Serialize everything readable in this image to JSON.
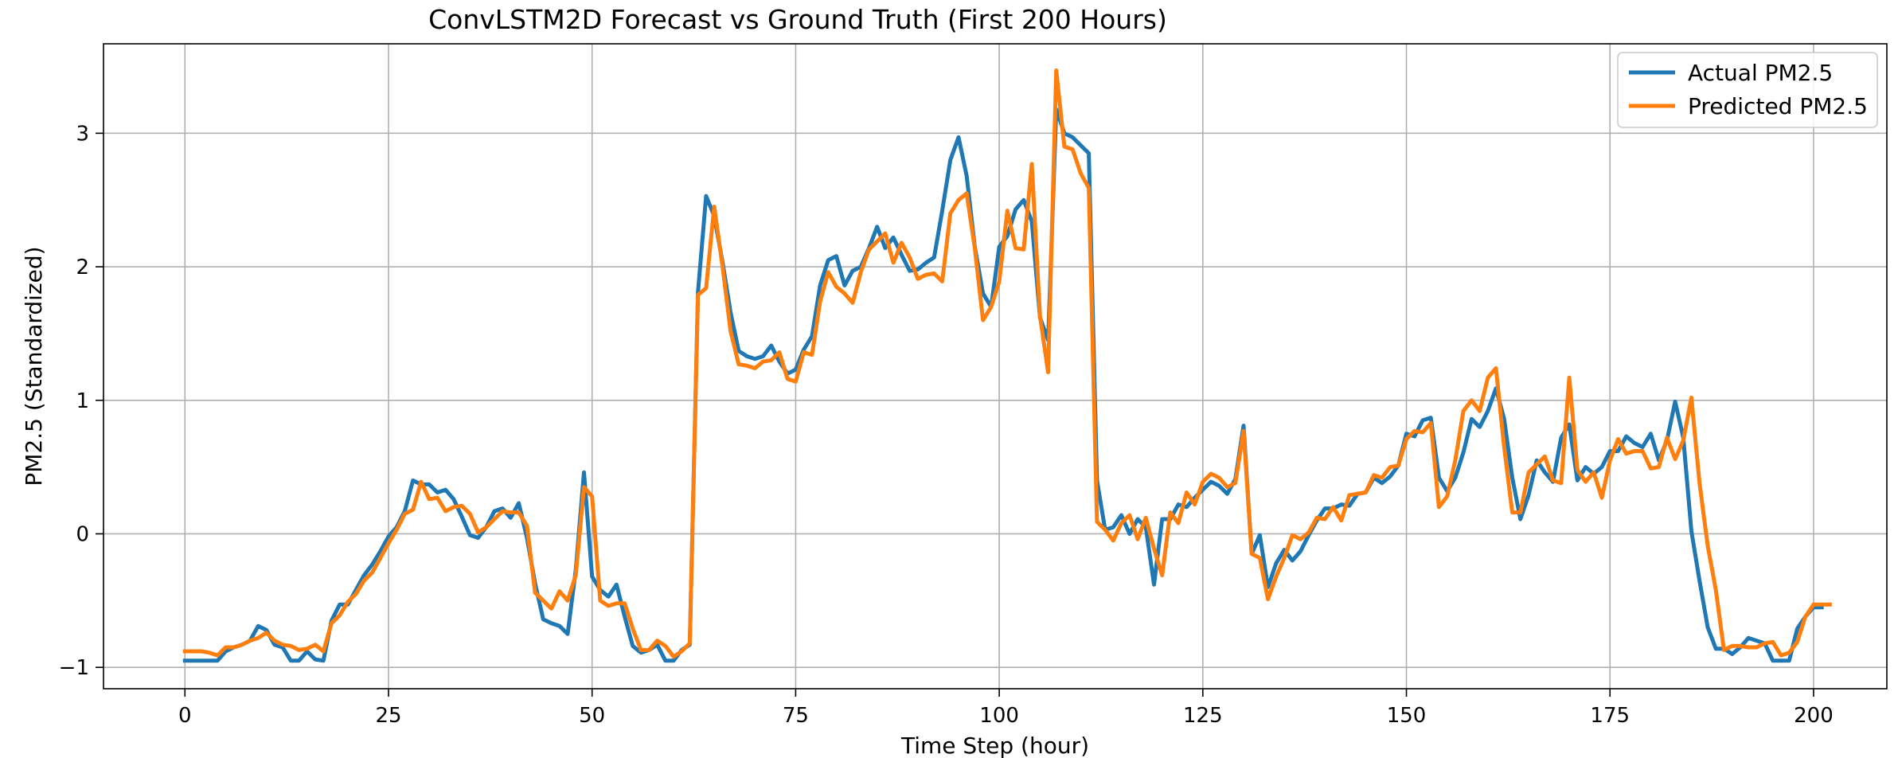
{
  "chart_data": {
    "type": "line",
    "title": "ConvLSTM2D Forecast vs Ground Truth (First 200 Hours)",
    "xlabel": "Time Step (hour)",
    "ylabel": "PM2.5 (Standardized)",
    "xlim": [
      -10,
      209
    ],
    "ylim": [
      -1.16,
      3.67
    ],
    "xticks": [
      0,
      25,
      50,
      75,
      100,
      125,
      150,
      175,
      200
    ],
    "yticks": [
      -1,
      0,
      1,
      2,
      3
    ],
    "ytick_labels": [
      "−1",
      "0",
      "1",
      "2",
      "3"
    ],
    "grid": true,
    "legend_position": "top-right",
    "series": [
      {
        "name": "Actual PM2.5",
        "color": "#1f77b4",
        "values": [
          -0.95,
          -0.95,
          -0.95,
          -0.95,
          -0.95,
          -0.88,
          -0.85,
          -0.83,
          -0.8,
          -0.69,
          -0.72,
          -0.83,
          -0.85,
          -0.95,
          -0.95,
          -0.88,
          -0.94,
          -0.95,
          -0.65,
          -0.53,
          -0.53,
          -0.42,
          -0.31,
          -0.23,
          -0.13,
          -0.02,
          0.05,
          0.17,
          0.4,
          0.37,
          0.37,
          0.31,
          0.33,
          0.26,
          0.13,
          -0.01,
          -0.03,
          0.05,
          0.17,
          0.19,
          0.12,
          0.23,
          -0.03,
          -0.37,
          -0.64,
          -0.67,
          -0.69,
          -0.75,
          -0.27,
          0.46,
          -0.32,
          -0.42,
          -0.47,
          -0.38,
          -0.62,
          -0.84,
          -0.89,
          -0.87,
          -0.83,
          -0.95,
          -0.95,
          -0.87,
          -0.83,
          1.81,
          2.53,
          2.38,
          2.04,
          1.66,
          1.37,
          1.33,
          1.31,
          1.33,
          1.41,
          1.29,
          1.2,
          1.23,
          1.38,
          1.48,
          1.86,
          2.05,
          2.08,
          1.86,
          1.97,
          2.0,
          2.14,
          2.3,
          2.14,
          2.22,
          2.09,
          1.97,
          1.98,
          2.03,
          2.07,
          2.42,
          2.8,
          2.97,
          2.68,
          2.15,
          1.8,
          1.7,
          2.15,
          2.23,
          2.43,
          2.5,
          2.34,
          1.62,
          1.45,
          3.18,
          3.0,
          2.97,
          2.91,
          2.85,
          0.4,
          0.03,
          0.05,
          0.14,
          0.0,
          0.11,
          0.05,
          -0.38,
          0.11,
          0.11,
          0.22,
          0.2,
          0.27,
          0.33,
          0.39,
          0.36,
          0.3,
          0.41,
          0.81,
          -0.15,
          -0.01,
          -0.4,
          -0.22,
          -0.12,
          -0.2,
          -0.13,
          -0.01,
          0.1,
          0.19,
          0.19,
          0.22,
          0.21,
          0.3,
          0.31,
          0.42,
          0.38,
          0.43,
          0.51,
          0.75,
          0.73,
          0.85,
          0.87,
          0.42,
          0.32,
          0.42,
          0.61,
          0.86,
          0.8,
          0.92,
          1.09,
          0.86,
          0.42,
          0.11,
          0.29,
          0.55,
          0.46,
          0.39,
          0.72,
          0.82,
          0.4,
          0.5,
          0.45,
          0.5,
          0.62,
          0.62,
          0.73,
          0.68,
          0.65,
          0.75,
          0.55,
          0.7,
          0.99,
          0.72,
          0.02,
          -0.35,
          -0.7,
          -0.86,
          -0.86,
          -0.9,
          -0.85,
          -0.78,
          -0.8,
          -0.82,
          -0.95,
          -0.95,
          -0.95,
          -0.71,
          -0.62,
          -0.55,
          -0.55
        ]
      },
      {
        "name": "Predicted PM2.5",
        "color": "#ff7f0e",
        "values": [
          -0.88,
          -0.88,
          -0.88,
          -0.89,
          -0.91,
          -0.85,
          -0.85,
          -0.83,
          -0.8,
          -0.78,
          -0.74,
          -0.8,
          -0.83,
          -0.84,
          -0.87,
          -0.86,
          -0.83,
          -0.88,
          -0.67,
          -0.61,
          -0.51,
          -0.45,
          -0.35,
          -0.29,
          -0.18,
          -0.07,
          0.03,
          0.15,
          0.18,
          0.39,
          0.26,
          0.27,
          0.17,
          0.2,
          0.21,
          0.15,
          0.01,
          0.05,
          0.11,
          0.17,
          0.16,
          0.16,
          0.06,
          -0.44,
          -0.5,
          -0.56,
          -0.43,
          -0.5,
          -0.31,
          0.35,
          0.28,
          -0.5,
          -0.54,
          -0.52,
          -0.52,
          -0.71,
          -0.87,
          -0.87,
          -0.8,
          -0.84,
          -0.92,
          -0.88,
          -0.82,
          1.79,
          1.84,
          2.45,
          2.01,
          1.52,
          1.27,
          1.26,
          1.24,
          1.29,
          1.3,
          1.36,
          1.16,
          1.14,
          1.36,
          1.34,
          1.74,
          1.96,
          1.85,
          1.8,
          1.73,
          1.96,
          2.13,
          2.19,
          2.25,
          2.03,
          2.18,
          2.07,
          1.91,
          1.94,
          1.95,
          1.89,
          2.4,
          2.5,
          2.55,
          2.14,
          1.6,
          1.7,
          1.89,
          2.42,
          2.14,
          2.13,
          2.77,
          1.63,
          1.21,
          3.47,
          2.9,
          2.88,
          2.7,
          2.59,
          0.09,
          0.03,
          -0.05,
          0.08,
          0.14,
          -0.04,
          0.12,
          -0.11,
          -0.31,
          0.16,
          0.08,
          0.31,
          0.22,
          0.39,
          0.45,
          0.42,
          0.35,
          0.38,
          0.77,
          -0.15,
          -0.18,
          -0.49,
          -0.32,
          -0.18,
          -0.01,
          -0.04,
          0.01,
          0.12,
          0.11,
          0.2,
          0.1,
          0.29,
          0.3,
          0.31,
          0.44,
          0.42,
          0.5,
          0.51,
          0.71,
          0.77,
          0.76,
          0.83,
          0.2,
          0.28,
          0.55,
          0.92,
          1.0,
          0.92,
          1.17,
          1.24,
          0.65,
          0.16,
          0.16,
          0.46,
          0.52,
          0.58,
          0.4,
          0.38,
          1.17,
          0.48,
          0.39,
          0.46,
          0.27,
          0.55,
          0.71,
          0.6,
          0.62,
          0.62,
          0.49,
          0.5,
          0.72,
          0.56,
          0.7,
          1.02,
          0.38,
          -0.09,
          -0.42,
          -0.87,
          -0.84,
          -0.84,
          -0.85,
          -0.85,
          -0.82,
          -0.81,
          -0.91,
          -0.89,
          -0.81,
          -0.62,
          -0.53,
          -0.53,
          -0.53
        ]
      }
    ]
  }
}
